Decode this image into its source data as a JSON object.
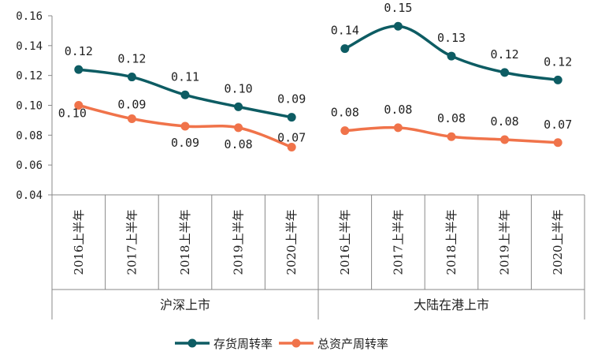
{
  "chart_data": {
    "type": "line",
    "ylim": [
      0.04,
      0.16
    ],
    "y_ticks": [
      "0.04",
      "0.06",
      "0.08",
      "0.10",
      "0.12",
      "0.14",
      "0.16"
    ],
    "categories": [
      "2016上半年",
      "2017上半年",
      "2018上半年",
      "2019上半年",
      "2020上半年"
    ],
    "groups": [
      {
        "name": "沪深上市",
        "series": [
          {
            "name": "存货周转率",
            "values": [
              0.124,
              0.119,
              0.107,
              0.099,
              0.092
            ],
            "labels": [
              "0.12",
              "0.12",
              "0.11",
              "0.10",
              "0.09"
            ]
          },
          {
            "name": "总资产周转率",
            "values": [
              0.1,
              0.091,
              0.086,
              0.085,
              0.072
            ],
            "labels": [
              "0.10",
              "0.09",
              "0.09",
              "0.08",
              "0.07"
            ]
          }
        ]
      },
      {
        "name": "大陆在港上市",
        "series": [
          {
            "name": "存货周转率",
            "values": [
              0.138,
              0.153,
              0.133,
              0.122,
              0.117
            ],
            "labels": [
              "0.14",
              "0.15",
              "0.13",
              "0.12",
              "0.12"
            ]
          },
          {
            "name": "总资产周转率",
            "values": [
              0.083,
              0.085,
              0.079,
              0.077,
              0.075
            ],
            "labels": [
              "0.08",
              "0.08",
              "0.08",
              "0.08",
              "0.07"
            ]
          }
        ]
      }
    ],
    "legend": [
      {
        "name": "存货周转率",
        "color": "#0d5c63"
      },
      {
        "name": "总资产周转率",
        "color": "#f0734a"
      }
    ],
    "legend_position": "bottom"
  }
}
